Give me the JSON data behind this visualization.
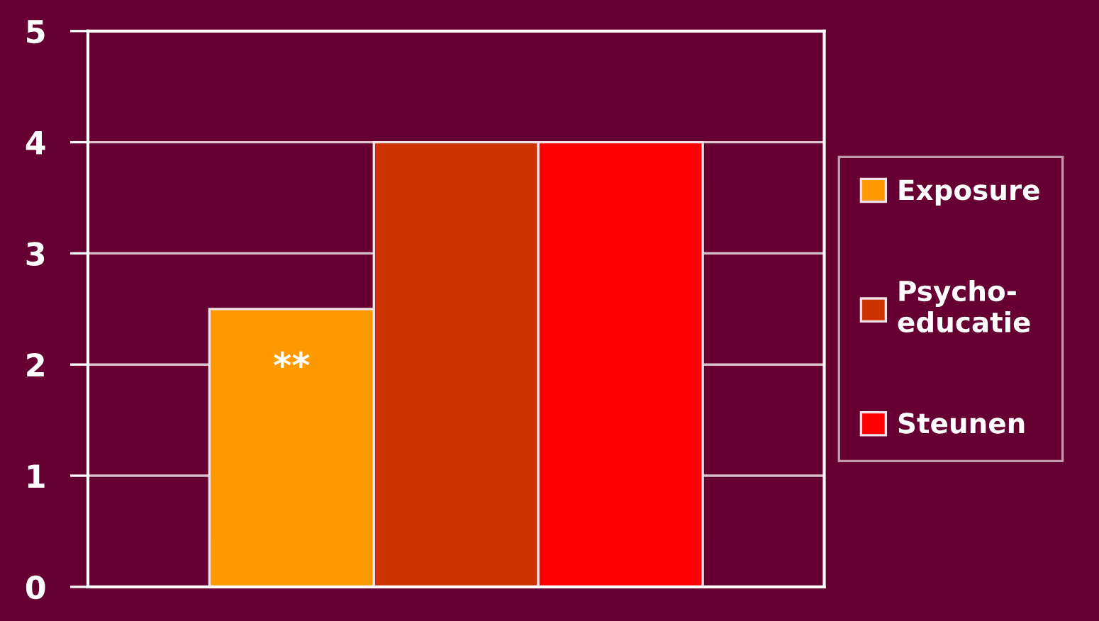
{
  "chart_data": {
    "type": "bar",
    "categories": [
      null
    ],
    "series": [
      {
        "name": "Exposure",
        "color": "#ff9900",
        "values": [
          2.5
        ]
      },
      {
        "name": "Psycho-\neducatie",
        "color": "#cc3300",
        "values": [
          4
        ]
      },
      {
        "name": "Steunen",
        "color": "#ff0000",
        "values": [
          4
        ]
      }
    ],
    "ylim": [
      0,
      5
    ],
    "yticks": [
      0,
      1,
      2,
      3,
      4,
      5
    ],
    "grid": "y",
    "legend": "right",
    "annotations": [
      "**"
    ]
  }
}
